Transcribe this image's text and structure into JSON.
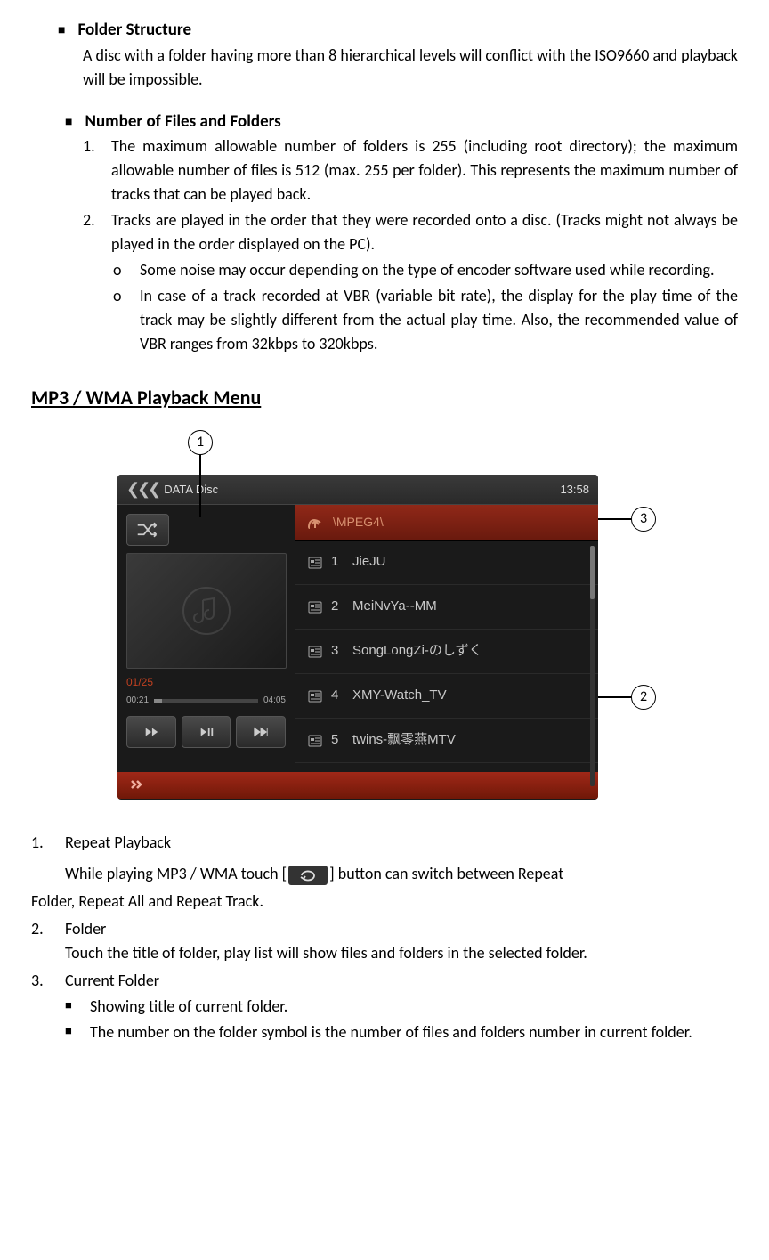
{
  "section1": {
    "title": "Folder Structure",
    "body": "A disc with a folder having more than 8 hierarchical levels will conflict with the ISO9660 and playback will be impossible."
  },
  "section2": {
    "title": "Number of Files and Folders",
    "items": [
      "The maximum allowable number of folders is 255 (including root directory); the maximum allowable number of files is 512 (max. 255 per folder). This represents the maximum number of tracks that can be played back.",
      "Tracks are played in the order that they were recorded onto a disc. (Tracks might not always be played in the order displayed on the PC)."
    ],
    "subitems": [
      "Some noise may occur depending on the type of encoder software used while recording.",
      "In case of a track recorded at VBR (variable bit rate), the display for the play time of the track may be slightly different from the actual play time. Also, the recommended value of VBR ranges from 32kbps to 320kbps."
    ]
  },
  "heading": "MP3 / WMA Playback Menu",
  "screen": {
    "top_label": "DATA Disc",
    "clock": "13:58",
    "track_counter": "01/25",
    "time_elapsed": "00:21",
    "time_total": "04:05",
    "folder_path": "\\MPEG4\\",
    "tracks": [
      {
        "n": "1",
        "name": "JieJU"
      },
      {
        "n": "2",
        "name": "MeiNvYa--MM"
      },
      {
        "n": "3",
        "name": "SongLongZi-のしずく"
      },
      {
        "n": "4",
        "name": "XMY-Watch_TV"
      },
      {
        "n": "5",
        "name": "twins-飘零燕MTV"
      }
    ]
  },
  "callouts": {
    "c1": "1",
    "c2": "2",
    "c3": "3"
  },
  "desc": {
    "item1_title": "Repeat Playback",
    "item1_body_a": "While playing MP3 / WMA touch [",
    "item1_body_b": "] button can switch between Repeat",
    "item1_body_c": "Folder, Repeat All and Repeat Track.",
    "item2_title": "Folder",
    "item2_body": "Touch the title of folder, play list will show files and folders in the selected folder.",
    "item3_title": "Current Folder",
    "item3_bullets": [
      "Showing title of current folder.",
      "The number on the folder symbol is the number of files and folders number in current folder."
    ]
  }
}
